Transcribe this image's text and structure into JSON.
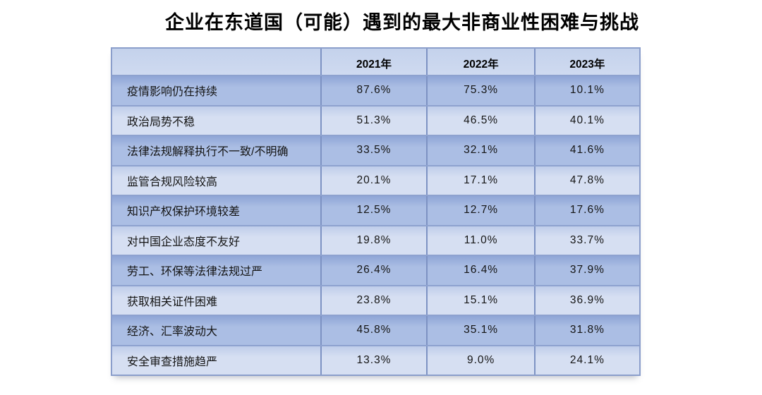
{
  "title": "企业在东道国（可能）遇到的最大非商业性困难与挑战",
  "colors": {
    "header_bg": "#cbd8ee",
    "row_dark": "#abbee4",
    "row_light": "#d6dff2",
    "border_vertical": "#7d92c3",
    "border_horizontal": "#8ea2cf",
    "text": "#141414",
    "background": "#ffffff"
  },
  "table": {
    "header": [
      "",
      "2021年",
      "2022年",
      "2023年"
    ],
    "rows": [
      {
        "label": "疫情影响仍在持续",
        "values": [
          "87.6%",
          "75.3%",
          "10.1%"
        ]
      },
      {
        "label": "政治局势不稳",
        "values": [
          "51.3%",
          "46.5%",
          "40.1%"
        ]
      },
      {
        "label": "法律法规解释执行不一致/不明确",
        "values": [
          "33.5%",
          "32.1%",
          "41.6%"
        ]
      },
      {
        "label": "监管合规风险较高",
        "values": [
          "20.1%",
          "17.1%",
          "47.8%"
        ]
      },
      {
        "label": "知识产权保护环境较差",
        "values": [
          "12.5%",
          "12.7%",
          "17.6%"
        ]
      },
      {
        "label": "对中国企业态度不友好",
        "values": [
          "19.8%",
          "11.0%",
          "33.7%"
        ]
      },
      {
        "label": "劳工、环保等法律法规过严",
        "values": [
          "26.4%",
          "16.4%",
          "37.9%"
        ]
      },
      {
        "label": "获取相关证件困难",
        "values": [
          "23.8%",
          "15.1%",
          "36.9%"
        ]
      },
      {
        "label": "经济、汇率波动大",
        "values": [
          "45.8%",
          "35.1%",
          "31.8%"
        ]
      },
      {
        "label": "安全审查措施趋严",
        "values": [
          "13.3%",
          "9.0%",
          "24.1%"
        ]
      }
    ]
  },
  "chart_data": {
    "type": "table",
    "title": "企业在东道国（可能）遇到的最大非商业性困难与挑战",
    "categories": [
      "疫情影响仍在持续",
      "政治局势不稳",
      "法律法规解释执行不一致/不明确",
      "监管合规风险较高",
      "知识产权保护环境较差",
      "对中国企业态度不友好",
      "劳工、环保等法律法规过严",
      "获取相关证件困难",
      "经济、汇率波动大",
      "安全审查措施趋严"
    ],
    "series": [
      {
        "name": "2021年",
        "values": [
          87.6,
          51.3,
          33.5,
          20.1,
          12.5,
          19.8,
          26.4,
          23.8,
          45.8,
          13.3
        ]
      },
      {
        "name": "2022年",
        "values": [
          75.3,
          46.5,
          32.1,
          17.1,
          12.7,
          11.0,
          16.4,
          15.1,
          35.1,
          9.0
        ]
      },
      {
        "name": "2023年",
        "values": [
          10.1,
          40.1,
          41.6,
          47.8,
          17.6,
          33.7,
          37.9,
          36.9,
          31.8,
          24.1
        ]
      }
    ],
    "unit": "%",
    "legend_position": "none",
    "grid": true
  }
}
